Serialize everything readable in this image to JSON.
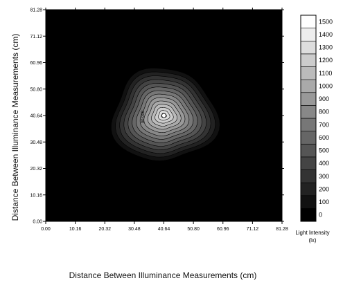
{
  "chart_data": {
    "type": "heatmap",
    "subtype": "contour",
    "xlabel": "Distance Between Illuminance Measurements (cm)",
    "ylabel": "Distance Between Illuminance Measurements (cm)",
    "xlim": [
      0,
      81.28
    ],
    "ylim": [
      0,
      81.28
    ],
    "x_ticks": [
      "0.00",
      "10.16",
      "20.32",
      "30.48",
      "40.64",
      "50.80",
      "60.96",
      "71.12",
      "81.28"
    ],
    "y_ticks": [
      "0.00",
      "10.16",
      "20.32",
      "30.48",
      "40.64",
      "50.80",
      "60.96",
      "71.12",
      "81.28"
    ],
    "x_tick_values": [
      0,
      10.16,
      20.32,
      30.48,
      40.64,
      50.8,
      60.96,
      71.12,
      81.28
    ],
    "y_tick_values": [
      0,
      10.16,
      20.32,
      30.48,
      40.64,
      50.8,
      60.96,
      71.12,
      81.28
    ],
    "peak": {
      "x": 40.64,
      "y": 40.64,
      "value": 1500
    },
    "contour_levels": [
      0,
      100,
      200,
      300,
      400,
      500,
      600,
      700,
      800,
      900,
      1000,
      1100,
      1200,
      1300,
      1400,
      1500
    ],
    "colorbar": {
      "title_line1": "Light Intensity",
      "title_line2": "(lx)",
      "levels": [
        0,
        100,
        200,
        300,
        400,
        500,
        600,
        700,
        800,
        900,
        1000,
        1100,
        1200,
        1300,
        1400,
        1500
      ],
      "labels": [
        "0",
        "100",
        "200",
        "300",
        "400",
        "500",
        "600",
        "700",
        "800",
        "900",
        "1000",
        "1100",
        "1200",
        "1300",
        "1400",
        "1500"
      ]
    },
    "contour_annotation": "800.00",
    "grid": false,
    "legend_position": "right"
  }
}
